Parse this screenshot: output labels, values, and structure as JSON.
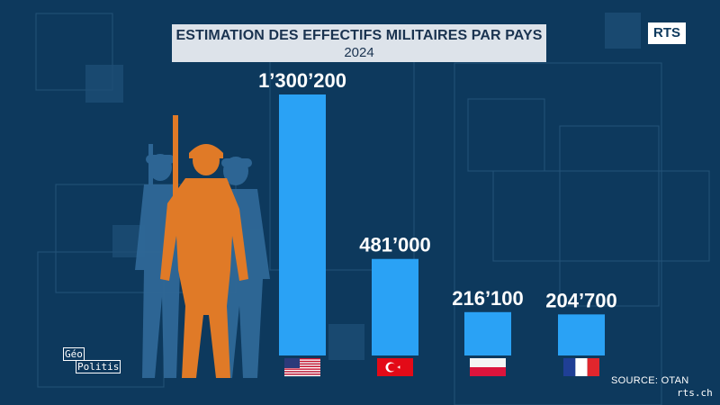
{
  "title": "ESTIMATION DES EFFECTIFS MILITAIRES PAR PAYS",
  "subtitle": "2024",
  "broadcaster_logo": "RTS",
  "source_label": "SOURCE: OTAN",
  "site_label": "rts.ch",
  "program_logo": {
    "line1": "Géo",
    "line2": "Politis"
  },
  "colors": {
    "background": "#0d395d",
    "bar": "#2aa2f5",
    "soldier_front": "#e07a27",
    "soldier_back": "#2f6897",
    "title_box": "#dde3ea"
  },
  "icons": [
    "soldier-silhouette-icon",
    "us-flag-icon",
    "turkey-flag-icon",
    "poland-flag-icon",
    "france-flag-icon"
  ],
  "chart_data": {
    "type": "bar",
    "title": "ESTIMATION DES EFFECTIFS MILITAIRES PAR PAYS",
    "subtitle": "2024",
    "categories": [
      "United States",
      "Turkey",
      "Poland",
      "France"
    ],
    "flags": [
      "us",
      "turkey",
      "poland",
      "france"
    ],
    "values": [
      1300200,
      481000,
      216100,
      204700
    ],
    "value_labels": [
      "1’300’200",
      "481’000",
      "216’100",
      "204’700"
    ],
    "ylim": [
      0,
      1300200
    ],
    "grid": false,
    "legend": "none"
  }
}
